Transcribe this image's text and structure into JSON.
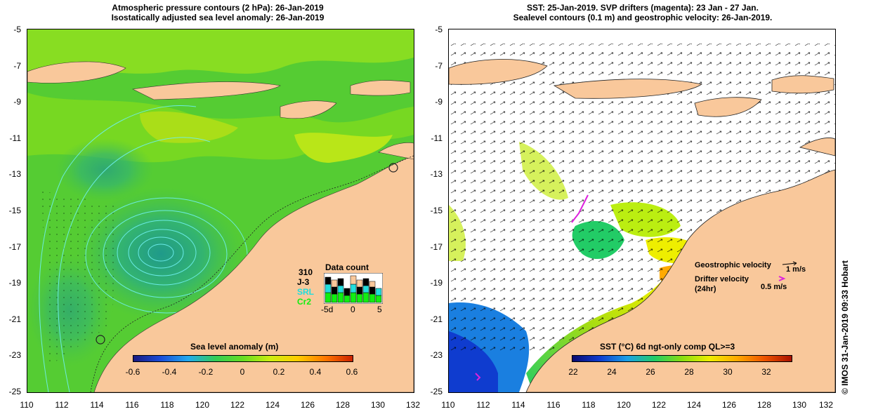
{
  "left": {
    "title_line1": "Atmospheric pressure contours (2 hPa): 26-Jan-2019",
    "title_line2": "Isostatically adjusted sea level anomaly: 26-Jan-2019",
    "colorbar_title": "Sea level anomaly (m)",
    "colorbar_ticks": [
      "-0.6",
      "-0.4",
      "-0.2",
      "0",
      "0.2",
      "0.4",
      "0.6"
    ],
    "data_count": {
      "title": "Data count",
      "number": "310",
      "labels": [
        "J-3",
        "SRL",
        "Cr2"
      ],
      "axis": [
        "-5d",
        "0",
        "5"
      ]
    }
  },
  "right": {
    "title_line1": "SST: 25-Jan-2019. SVP drifters (magenta): 23 Jan - 27 Jan.",
    "title_line2": "Sealevel contours (0.1 m) and geostrophic velocity: 26-Jan-2019.",
    "colorbar_title": "SST (°C) 6d ngt-only comp QL>=3",
    "colorbar_ticks": [
      "22",
      "24",
      "26",
      "28",
      "30",
      "32"
    ],
    "legend": {
      "geo_label": "Geostrophic velocity",
      "geo_value": "1 m/s",
      "drifter_label": "Drifter velocity",
      "drifter_period": "(24hr)",
      "drifter_value": "0.5 m/s"
    },
    "credit": "© IMOS 31-Jan-2019 09:33 Hobart"
  },
  "axes": {
    "y_ticks": [
      "-5",
      "-7",
      "-9",
      "-11",
      "-13",
      "-15",
      "-17",
      "-19",
      "-21",
      "-23",
      "-25"
    ],
    "x_ticks": [
      "110",
      "112",
      "114",
      "116",
      "118",
      "120",
      "122",
      "124",
      "126",
      "128",
      "130",
      "132"
    ]
  },
  "colors": {
    "land": "#f9c89b",
    "sla_ramp": [
      "#1a1a80",
      "#1a4dd9",
      "#22aaee",
      "#33cc55",
      "#66dd22",
      "#ccee11",
      "#ffcc00",
      "#ff7700",
      "#cc2200"
    ],
    "sst_ramp": [
      "#0a0a70",
      "#0f3ccf",
      "#1aa0e6",
      "#22cc66",
      "#88dd11",
      "#eeee00",
      "#ffaa00",
      "#ee5500",
      "#aa1100"
    ],
    "drifter": "#dd22dd"
  }
}
